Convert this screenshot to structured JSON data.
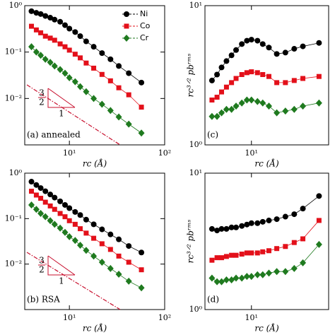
{
  "chart_data": [
    {
      "type": "line",
      "panel_label": "(a) annealed",
      "log_x": true,
      "log_y": true,
      "x_label": "rc (Å)",
      "legend": "upper right",
      "x": [
        4,
        4.5,
        5,
        5.6,
        6.3,
        7,
        8,
        9,
        10,
        11.5,
        13,
        15,
        18,
        22,
        27,
        33,
        42,
        57
      ],
      "series": [
        {
          "name": "Ni",
          "color": "#000000",
          "marker": "circle",
          "values": [
            0.76,
            0.7,
            0.66,
            0.6,
            0.55,
            0.5,
            0.45,
            0.38,
            0.32,
            0.27,
            0.22,
            0.17,
            0.13,
            0.095,
            0.07,
            0.05,
            0.035,
            0.022
          ]
        },
        {
          "name": "Co",
          "color": "#e3101a",
          "marker": "square",
          "values": [
            0.36,
            0.3,
            0.26,
            0.22,
            0.2,
            0.18,
            0.15,
            0.13,
            0.11,
            0.09,
            0.075,
            0.058,
            0.045,
            0.033,
            0.024,
            0.017,
            0.012,
            0.0065
          ]
        },
        {
          "name": "Cr",
          "color": "#1f7a1f",
          "marker": "diamond",
          "values": [
            0.13,
            0.1,
            0.085,
            0.07,
            0.06,
            0.05,
            0.042,
            0.035,
            0.028,
            0.023,
            0.018,
            0.014,
            0.01,
            0.0075,
            0.0055,
            0.004,
            0.0028,
            0.0018
          ]
        }
      ],
      "triangle_labels": [
        "3",
        "2",
        "1"
      ],
      "xlim": [
        3.4,
        100
      ],
      "ylim": [
        0.001,
        1
      ],
      "xticks": [
        {
          "value": 10,
          "label": "10¹"
        },
        {
          "value": 100,
          "label": "10²"
        }
      ],
      "yticks": [
        {
          "value": 0.01,
          "label": "10⁻²"
        },
        {
          "value": 0.1,
          "label": "10⁻¹"
        },
        {
          "value": 1,
          "label": "10⁰"
        }
      ]
    },
    {
      "type": "line",
      "panel_label": "(c)",
      "log_x": true,
      "log_y": true,
      "x_label": "rc (Å)",
      "y_label": "rc³ᐟ² pbʳᵐˢ",
      "x": [
        4,
        4.5,
        5,
        5.6,
        6.3,
        7,
        8,
        9,
        10,
        11.5,
        13,
        15,
        18,
        22,
        27,
        33,
        48
      ],
      "series": [
        {
          "name": "Ni",
          "color": "#000000",
          "marker": "circle",
          "values": [
            2.9,
            3.2,
            3.6,
            4.0,
            4.4,
            4.8,
            5.3,
            5.6,
            5.7,
            5.6,
            5.3,
            5.0,
            4.5,
            4.6,
            4.9,
            5.1,
            5.4
          ]
        },
        {
          "name": "Co",
          "color": "#e3101a",
          "marker": "square",
          "values": [
            2.1,
            2.2,
            2.4,
            2.6,
            2.8,
            3.0,
            3.2,
            3.3,
            3.35,
            3.3,
            3.2,
            3.1,
            2.8,
            2.8,
            2.9,
            3.0,
            3.1
          ]
        },
        {
          "name": "Cr",
          "color": "#1f7a1f",
          "marker": "diamond",
          "values": [
            1.6,
            1.6,
            1.7,
            1.8,
            1.8,
            1.9,
            2.0,
            2.1,
            2.1,
            2.05,
            2.0,
            1.9,
            1.7,
            1.75,
            1.8,
            1.9,
            2.0
          ]
        }
      ],
      "xlim": [
        3.4,
        60
      ],
      "ylim": [
        1,
        10
      ],
      "xticks": [
        {
          "value": 10,
          "label": "10¹"
        }
      ],
      "yticks": [
        {
          "value": 1,
          "label": "10⁰"
        },
        {
          "value": 10,
          "label": "10¹"
        }
      ]
    },
    {
      "type": "line",
      "panel_label": "(b) RSA",
      "log_x": true,
      "log_y": true,
      "x_label": "rc (Å)",
      "x": [
        4,
        4.5,
        5,
        5.6,
        6.3,
        7,
        8,
        9,
        10,
        11.5,
        13,
        15,
        18,
        22,
        27,
        33,
        42,
        57
      ],
      "series": [
        {
          "name": "Ni",
          "color": "#000000",
          "marker": "circle",
          "values": [
            0.65,
            0.55,
            0.47,
            0.4,
            0.34,
            0.29,
            0.24,
            0.2,
            0.17,
            0.14,
            0.12,
            0.095,
            0.075,
            0.058,
            0.045,
            0.035,
            0.025,
            0.018
          ]
        },
        {
          "name": "Co",
          "color": "#e3101a",
          "marker": "square",
          "values": [
            0.4,
            0.33,
            0.28,
            0.23,
            0.19,
            0.16,
            0.13,
            0.11,
            0.09,
            0.075,
            0.06,
            0.048,
            0.037,
            0.028,
            0.021,
            0.015,
            0.011,
            0.0075
          ]
        },
        {
          "name": "Cr",
          "color": "#1f7a1f",
          "marker": "diamond",
          "values": [
            0.2,
            0.16,
            0.13,
            0.11,
            0.09,
            0.075,
            0.062,
            0.05,
            0.04,
            0.033,
            0.026,
            0.02,
            0.015,
            0.011,
            0.008,
            0.006,
            0.0042,
            0.003
          ]
        }
      ],
      "triangle_labels": [
        "3",
        "2",
        "1"
      ],
      "xlim": [
        3.4,
        100
      ],
      "ylim": [
        0.001,
        1
      ],
      "xticks": [
        {
          "value": 10,
          "label": "10¹"
        },
        {
          "value": 100,
          "label": "10²"
        }
      ],
      "yticks": [
        {
          "value": 0.01,
          "label": "10⁻²"
        },
        {
          "value": 0.1,
          "label": "10⁻¹"
        },
        {
          "value": 1,
          "label": "10⁰"
        }
      ]
    },
    {
      "type": "line",
      "panel_label": "(d)",
      "log_x": true,
      "log_y": true,
      "x_label": "rc (Å)",
      "y_label": "rc³ᐟ² pbʳᵐˢ",
      "x": [
        4,
        4.5,
        5,
        5.6,
        6.3,
        7,
        8,
        9,
        10,
        11.5,
        13,
        15,
        18,
        22,
        27,
        33,
        48
      ],
      "series": [
        {
          "name": "Ni",
          "color": "#000000",
          "marker": "circle",
          "values": [
            3.9,
            3.8,
            3.9,
            3.9,
            4.0,
            4.0,
            4.1,
            4.2,
            4.3,
            4.3,
            4.4,
            4.5,
            4.6,
            4.8,
            5.0,
            5.5,
            6.8
          ]
        },
        {
          "name": "Co",
          "color": "#e3101a",
          "marker": "square",
          "values": [
            2.3,
            2.4,
            2.4,
            2.45,
            2.5,
            2.5,
            2.55,
            2.6,
            2.6,
            2.6,
            2.65,
            2.7,
            2.8,
            2.9,
            3.1,
            3.3,
            4.5
          ]
        },
        {
          "name": "Cr",
          "color": "#1f7a1f",
          "marker": "diamond",
          "values": [
            1.7,
            1.6,
            1.6,
            1.65,
            1.65,
            1.7,
            1.7,
            1.75,
            1.75,
            1.8,
            1.8,
            1.85,
            1.9,
            1.9,
            2.0,
            2.2,
            3.0
          ]
        }
      ],
      "xlim": [
        3.4,
        60
      ],
      "ylim": [
        1,
        10
      ],
      "xticks": [
        {
          "value": 10,
          "label": "10¹"
        }
      ],
      "yticks": [
        {
          "value": 1,
          "label": "10⁰"
        },
        {
          "value": 10,
          "label": "10¹"
        }
      ]
    }
  ]
}
